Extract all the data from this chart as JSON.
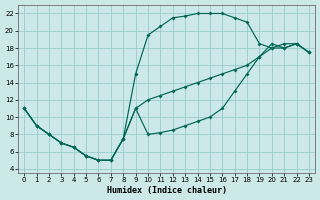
{
  "xlabel": "Humidex (Indice chaleur)",
  "bg_color": "#cce8e8",
  "grid_color": "#99cccc",
  "line_color": "#006655",
  "xlim": [
    -0.5,
    23.5
  ],
  "ylim": [
    3.5,
    23
  ],
  "xticks": [
    0,
    1,
    2,
    3,
    4,
    5,
    6,
    7,
    8,
    9,
    10,
    11,
    12,
    13,
    14,
    15,
    16,
    17,
    18,
    19,
    20,
    21,
    22,
    23
  ],
  "yticks": [
    4,
    6,
    8,
    10,
    12,
    14,
    16,
    18,
    20,
    22
  ],
  "curve_top_x": [
    0,
    1,
    2,
    3,
    4,
    5,
    6,
    7,
    8,
    9,
    10,
    11,
    12,
    13,
    14,
    15,
    16,
    17,
    18,
    19,
    20,
    21,
    22,
    23
  ],
  "curve_top_y": [
    11,
    9,
    8,
    7,
    6.5,
    5.5,
    5,
    5,
    7.5,
    15,
    19.5,
    20.5,
    21.5,
    21.7,
    22,
    22,
    22,
    21.5,
    21,
    18.5,
    18,
    18,
    18.5,
    17.5
  ],
  "curve_diag_x": [
    0,
    1,
    2,
    3,
    4,
    5,
    6,
    7,
    8,
    9,
    10,
    11,
    12,
    13,
    14,
    15,
    16,
    17,
    18,
    19,
    20,
    21,
    22,
    23
  ],
  "curve_diag_y": [
    11,
    9,
    8,
    7,
    6.5,
    5.5,
    5,
    5,
    7.5,
    11,
    12,
    12.5,
    13,
    13.5,
    14,
    14.5,
    15,
    15.5,
    16,
    17,
    18,
    18.5,
    18.5,
    17.5
  ],
  "curve_bot_x": [
    0,
    1,
    2,
    3,
    4,
    5,
    6,
    7,
    8,
    9,
    10,
    11,
    12,
    13,
    14,
    15,
    16,
    17,
    18,
    19,
    20,
    21,
    22,
    23
  ],
  "curve_bot_y": [
    11,
    9,
    8,
    7,
    6.5,
    5.5,
    5,
    5,
    7.5,
    11,
    8,
    8.2,
    8.5,
    9,
    9.5,
    10,
    11,
    13,
    15,
    17,
    18.5,
    18,
    18.5,
    17.5
  ]
}
